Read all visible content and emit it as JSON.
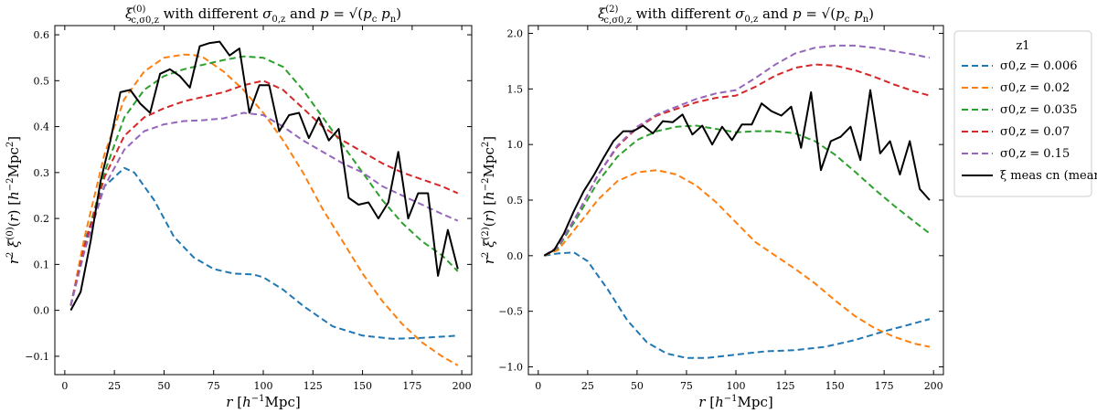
{
  "chart_data": [
    {
      "type": "line",
      "title": "ξ(0)c,σ0,z with different σ0,z and p = √(pc pn)",
      "xlabel": "r [h⁻¹Mpc]",
      "ylabel": "r² ξ(0)(r) [h⁻²Mpc²]",
      "xlim": [
        -5,
        205
      ],
      "ylim": [
        -0.14,
        0.62
      ],
      "xticks": [
        0,
        25,
        50,
        75,
        100,
        125,
        150,
        175,
        200
      ],
      "xtick_labels": [
        "0",
        "25",
        "50",
        "75",
        "100",
        "125",
        "150",
        "175",
        "200"
      ],
      "yticks": [
        -0.1,
        0.0,
        0.1,
        0.2,
        0.3,
        0.4,
        0.5,
        0.6
      ],
      "ytick_labels": [
        "−0.1",
        "0.0",
        "0.1",
        "0.2",
        "0.3",
        "0.4",
        "0.5",
        "0.6"
      ],
      "series": [
        {
          "name": "σ0,z = 0.006",
          "color": "#1f77b4",
          "style": "dashed",
          "x": [
            3,
            10,
            20,
            30,
            35,
            45,
            55,
            65,
            75,
            85,
            95,
            100,
            110,
            120,
            135,
            150,
            165,
            180,
            198
          ],
          "y": [
            0.01,
            0.15,
            0.27,
            0.31,
            0.3,
            0.24,
            0.16,
            0.115,
            0.09,
            0.08,
            0.078,
            0.072,
            0.045,
            0.01,
            -0.035,
            -0.055,
            -0.062,
            -0.06,
            -0.055
          ]
        },
        {
          "name": "σ0,z = 0.02",
          "color": "#ff7f0e",
          "style": "dashed",
          "x": [
            3,
            10,
            20,
            30,
            40,
            50,
            60,
            65,
            70,
            80,
            90,
            100,
            110,
            120,
            130,
            140,
            150,
            160,
            170,
            180,
            190,
            198
          ],
          "y": [
            0.01,
            0.16,
            0.34,
            0.46,
            0.52,
            0.55,
            0.557,
            0.556,
            0.55,
            0.52,
            0.48,
            0.43,
            0.37,
            0.3,
            0.22,
            0.15,
            0.08,
            0.02,
            -0.03,
            -0.07,
            -0.1,
            -0.12
          ]
        },
        {
          "name": "σ0,z = 0.035",
          "color": "#2ca02c",
          "style": "dashed",
          "x": [
            3,
            10,
            20,
            30,
            40,
            50,
            60,
            70,
            80,
            90,
            100,
            110,
            120,
            130,
            140,
            150,
            160,
            170,
            180,
            190,
            198
          ],
          "y": [
            0.01,
            0.14,
            0.3,
            0.42,
            0.48,
            0.51,
            0.525,
            0.535,
            0.545,
            0.553,
            0.55,
            0.53,
            0.48,
            0.42,
            0.36,
            0.3,
            0.24,
            0.19,
            0.15,
            0.12,
            0.085
          ]
        },
        {
          "name": "σ0,z = 0.07",
          "color": "#d62728",
          "style": "dashed",
          "x": [
            3,
            10,
            20,
            30,
            40,
            50,
            60,
            70,
            80,
            90,
            100,
            110,
            120,
            130,
            140,
            150,
            160,
            170,
            180,
            190,
            198
          ],
          "y": [
            0.01,
            0.14,
            0.29,
            0.38,
            0.42,
            0.44,
            0.455,
            0.465,
            0.475,
            0.49,
            0.5,
            0.48,
            0.44,
            0.4,
            0.37,
            0.345,
            0.32,
            0.3,
            0.285,
            0.27,
            0.255
          ]
        },
        {
          "name": "σ0,z = 0.15",
          "color": "#9467bd",
          "style": "dashed",
          "x": [
            3,
            10,
            20,
            30,
            40,
            50,
            60,
            70,
            80,
            90,
            100,
            110,
            120,
            130,
            140,
            150,
            160,
            170,
            180,
            190,
            198
          ],
          "y": [
            0.01,
            0.13,
            0.27,
            0.35,
            0.39,
            0.405,
            0.412,
            0.414,
            0.418,
            0.43,
            0.425,
            0.4,
            0.37,
            0.345,
            0.32,
            0.3,
            0.27,
            0.25,
            0.23,
            0.21,
            0.195
          ]
        },
        {
          "name": "ξ meas cn (mean)",
          "color": "#000000",
          "style": "solid",
          "x": [
            3,
            8,
            13,
            18,
            23,
            28,
            33,
            38,
            43,
            48,
            53,
            58,
            63,
            68,
            73,
            78,
            83,
            88,
            93,
            98,
            103,
            108,
            113,
            118,
            123,
            128,
            133,
            138,
            143,
            148,
            153,
            158,
            163,
            168,
            173,
            178,
            183,
            188,
            193,
            198
          ],
          "y": [
            0.0,
            0.04,
            0.15,
            0.28,
            0.37,
            0.475,
            0.48,
            0.45,
            0.43,
            0.515,
            0.525,
            0.51,
            0.485,
            0.575,
            0.582,
            0.585,
            0.555,
            0.57,
            0.43,
            0.49,
            0.49,
            0.39,
            0.425,
            0.43,
            0.375,
            0.42,
            0.37,
            0.395,
            0.245,
            0.23,
            0.235,
            0.2,
            0.235,
            0.345,
            0.2,
            0.255,
            0.255,
            0.075,
            0.175,
            0.09
          ]
        }
      ]
    },
    {
      "type": "line",
      "title": "ξ(2)c,σ0,z with different σ0,z and p = √(pc pn)",
      "xlabel": "r [h⁻¹Mpc]",
      "ylabel": "r² ξ(2)(r) [h⁻²Mpc²]",
      "xlim": [
        -5,
        205
      ],
      "ylim": [
        -1.07,
        2.07
      ],
      "xticks": [
        0,
        25,
        50,
        75,
        100,
        125,
        150,
        175,
        200
      ],
      "xtick_labels": [
        "0",
        "25",
        "50",
        "75",
        "100",
        "125",
        "150",
        "175",
        "200"
      ],
      "yticks": [
        -1.0,
        -0.5,
        0.0,
        0.5,
        1.0,
        1.5,
        2.0
      ],
      "ytick_labels": [
        "−1.0",
        "−0.5",
        "0.0",
        "0.5",
        "1.0",
        "1.5",
        "2.0"
      ],
      "series": [
        {
          "name": "σ0,z = 0.006",
          "color": "#1f77b4",
          "style": "dashed",
          "x": [
            3,
            10,
            18,
            25,
            35,
            45,
            55,
            65,
            75,
            85,
            100,
            115,
            130,
            145,
            160,
            175,
            190,
            198
          ],
          "y": [
            0.0,
            0.02,
            0.03,
            -0.05,
            -0.3,
            -0.58,
            -0.78,
            -0.88,
            -0.92,
            -0.92,
            -0.89,
            -0.86,
            -0.85,
            -0.82,
            -0.76,
            -0.68,
            -0.61,
            -0.57
          ]
        },
        {
          "name": "σ0,z = 0.02",
          "color": "#ff7f0e",
          "style": "dashed",
          "x": [
            3,
            10,
            20,
            30,
            40,
            50,
            60,
            70,
            80,
            90,
            100,
            110,
            120,
            130,
            140,
            150,
            160,
            170,
            180,
            190,
            198
          ],
          "y": [
            0.0,
            0.05,
            0.27,
            0.5,
            0.67,
            0.75,
            0.77,
            0.73,
            0.63,
            0.48,
            0.3,
            0.12,
            0.0,
            -0.12,
            -0.25,
            -0.4,
            -0.54,
            -0.65,
            -0.73,
            -0.79,
            -0.82
          ]
        },
        {
          "name": "σ0,z = 0.035",
          "color": "#2ca02c",
          "style": "dashed",
          "x": [
            3,
            10,
            20,
            30,
            40,
            50,
            60,
            70,
            80,
            90,
            100,
            110,
            120,
            130,
            140,
            150,
            160,
            170,
            180,
            190,
            198
          ],
          "y": [
            0.0,
            0.07,
            0.35,
            0.66,
            0.89,
            1.04,
            1.12,
            1.16,
            1.17,
            1.14,
            1.11,
            1.12,
            1.12,
            1.1,
            1.03,
            0.91,
            0.76,
            0.6,
            0.45,
            0.31,
            0.2
          ]
        },
        {
          "name": "σ0,z = 0.07",
          "color": "#d62728",
          "style": "dashed",
          "x": [
            3,
            10,
            20,
            30,
            40,
            50,
            60,
            70,
            80,
            90,
            100,
            110,
            120,
            130,
            140,
            150,
            160,
            170,
            180,
            190,
            198
          ],
          "y": [
            0.0,
            0.08,
            0.38,
            0.72,
            0.98,
            1.15,
            1.26,
            1.32,
            1.38,
            1.42,
            1.44,
            1.52,
            1.62,
            1.69,
            1.72,
            1.71,
            1.67,
            1.61,
            1.54,
            1.48,
            1.44
          ]
        },
        {
          "name": "σ0,z = 0.15",
          "color": "#9467bd",
          "style": "dashed",
          "x": [
            3,
            10,
            20,
            30,
            40,
            50,
            60,
            70,
            80,
            90,
            100,
            110,
            120,
            130,
            140,
            150,
            160,
            170,
            180,
            190,
            198
          ],
          "y": [
            0.0,
            0.08,
            0.38,
            0.72,
            0.99,
            1.16,
            1.27,
            1.34,
            1.41,
            1.46,
            1.49,
            1.6,
            1.72,
            1.82,
            1.87,
            1.89,
            1.89,
            1.87,
            1.84,
            1.81,
            1.78
          ]
        },
        {
          "name": "ξ meas cn (mean)",
          "color": "#000000",
          "style": "solid",
          "x": [
            3,
            8,
            13,
            18,
            23,
            28,
            33,
            38,
            43,
            48,
            53,
            58,
            63,
            68,
            73,
            78,
            83,
            88,
            93,
            98,
            103,
            108,
            113,
            118,
            123,
            128,
            133,
            138,
            143,
            148,
            153,
            158,
            163,
            168,
            173,
            178,
            183,
            188,
            193,
            198
          ],
          "y": [
            0.0,
            0.05,
            0.2,
            0.4,
            0.58,
            0.72,
            0.88,
            1.03,
            1.12,
            1.12,
            1.17,
            1.1,
            1.21,
            1.2,
            1.27,
            1.09,
            1.17,
            1.0,
            1.16,
            1.04,
            1.18,
            1.18,
            1.37,
            1.3,
            1.26,
            1.34,
            0.97,
            1.47,
            0.77,
            1.03,
            1.07,
            1.16,
            0.86,
            1.49,
            0.92,
            1.03,
            0.73,
            1.03,
            0.6,
            0.5
          ]
        }
      ]
    }
  ],
  "legend": {
    "title": "z1",
    "placement": "right",
    "entries": [
      {
        "label": "σ0,z = 0.006",
        "color": "#1f77b4",
        "style": "dashed"
      },
      {
        "label": "σ0,z = 0.02",
        "color": "#ff7f0e",
        "style": "dashed"
      },
      {
        "label": "σ0,z = 0.035",
        "color": "#2ca02c",
        "style": "dashed"
      },
      {
        "label": "σ0,z = 0.07",
        "color": "#d62728",
        "style": "dashed"
      },
      {
        "label": "σ0,z = 0.15",
        "color": "#9467bd",
        "style": "dashed"
      },
      {
        "label": "ξ meas cn (mean)",
        "color": "#000000",
        "style": "solid"
      }
    ]
  }
}
